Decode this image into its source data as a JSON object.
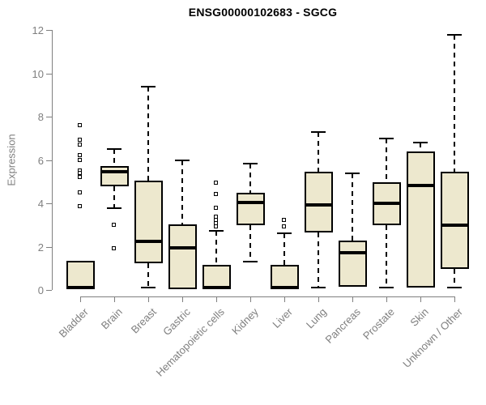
{
  "title": "ENSG00000102683 - SGCG",
  "chart_data": {
    "type": "boxplot",
    "title": "ENSG00000102683 - SGCG",
    "xlabel": "",
    "ylabel": "Expression",
    "ylim": [
      0,
      12
    ],
    "yticks": [
      0,
      2,
      4,
      6,
      8,
      10,
      12
    ],
    "grid": false,
    "legend": null,
    "box_fill_color": "#ede8ce",
    "box_border_color": "#000000",
    "axis_color": "#7f7f7f",
    "categories": [
      "Bladder",
      "Brain",
      "Breast",
      "Gastric",
      "Hematopoietic cells",
      "Kidney",
      "Liver",
      "Lung",
      "Pancreas",
      "Prostate",
      "Skin",
      "Unknown / Other"
    ],
    "boxes": [
      {
        "category": "Bladder",
        "whisker_low": null,
        "q1": 0.03,
        "median": 0.1,
        "q3": 1.35,
        "whisker_high": null,
        "outliers": [
          7.6,
          6.9,
          6.7,
          6.2,
          6.0,
          5.5,
          5.4,
          5.2,
          4.5,
          3.85
        ]
      },
      {
        "category": "Brain",
        "whisker_low": 3.78,
        "q1": 4.79,
        "median": 5.46,
        "q3": 5.72,
        "whisker_high": 6.5,
        "outliers": [
          3.0,
          1.9
        ]
      },
      {
        "category": "Breast",
        "whisker_low": 0.1,
        "q1": 1.23,
        "median": 2.24,
        "q3": 5.05,
        "whisker_high": 9.38,
        "outliers": []
      },
      {
        "category": "Gastric",
        "whisker_low": null,
        "q1": 0.05,
        "median": 1.94,
        "q3": 3.03,
        "whisker_high": 6.0,
        "outliers": []
      },
      {
        "category": "Hematopoietic cells",
        "whisker_low": null,
        "q1": 0.03,
        "median": 0.12,
        "q3": 1.16,
        "whisker_high": 2.73,
        "outliers": [
          4.95,
          4.4,
          3.78,
          3.35,
          3.2,
          3.05,
          2.9
        ]
      },
      {
        "category": "Kidney",
        "whisker_low": 1.31,
        "q1": 2.99,
        "median": 4.04,
        "q3": 4.49,
        "whisker_high": 5.83,
        "outliers": []
      },
      {
        "category": "Liver",
        "whisker_low": null,
        "q1": 0.03,
        "median": 0.12,
        "q3": 1.16,
        "whisker_high": 2.6,
        "outliers": [
          3.2,
          2.9
        ]
      },
      {
        "category": "Lung",
        "whisker_low": 0.1,
        "q1": 2.65,
        "median": 3.93,
        "q3": 5.46,
        "whisker_high": 7.3,
        "outliers": []
      },
      {
        "category": "Pancreas",
        "whisker_low": null,
        "q1": 0.15,
        "median": 1.72,
        "q3": 2.28,
        "whisker_high": 5.4,
        "outliers": []
      },
      {
        "category": "Prostate",
        "whisker_low": 0.1,
        "q1": 2.99,
        "median": 4.0,
        "q3": 4.97,
        "whisker_high": 7.0,
        "outliers": []
      },
      {
        "category": "Skin",
        "whisker_low": null,
        "q1": 0.1,
        "median": 4.82,
        "q3": 6.39,
        "whisker_high": 6.8,
        "outliers": []
      },
      {
        "category": "Unknown / Other",
        "whisker_low": 0.1,
        "q1": 0.97,
        "median": 2.99,
        "q3": 5.46,
        "whisker_high": 11.78,
        "outliers": []
      }
    ]
  }
}
